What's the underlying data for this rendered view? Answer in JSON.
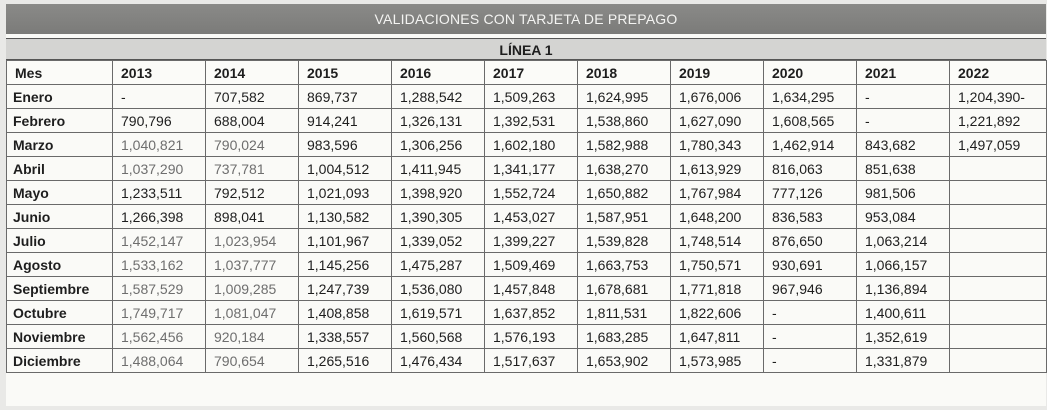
{
  "title": "VALIDACIONES CON TARJETA DE PREPAGO",
  "subtitle": "LÍNEA 1",
  "headers": [
    "Mes",
    "2013",
    "2014",
    "2015",
    "2016",
    "2017",
    "2018",
    "2019",
    "2020",
    "2021",
    "2022"
  ],
  "rows": [
    {
      "month": "Enero",
      "values": [
        "-",
        "707,582",
        "869,737",
        "1,288,542",
        "1,509,263",
        "1,624,995",
        "1,676,006",
        "1,634,295",
        "-",
        "1,204,390-"
      ]
    },
    {
      "month": "Febrero",
      "values": [
        "790,796",
        "688,004",
        "914,241",
        "1,326,131",
        "1,392,531",
        "1,538,860",
        "1,627,090",
        "1,608,565",
        "-",
        "1,221,892"
      ]
    },
    {
      "month": "Marzo",
      "values": [
        "1,040,821",
        "790,024",
        "983,596",
        "1,306,256",
        "1,602,180",
        "1,582,988",
        "1,780,343",
        "1,462,914",
        "843,682",
        "1,497,059"
      ]
    },
    {
      "month": "Abril",
      "values": [
        "1,037,290",
        "737,781",
        "1,004,512",
        "1,411,945",
        "1,341,177",
        "1,638,270",
        "1,613,929",
        "816,063",
        "851,638",
        ""
      ]
    },
    {
      "month": "Mayo",
      "values": [
        "1,233,511",
        "792,512",
        "1,021,093",
        "1,398,920",
        "1,552,724",
        "1,650,882",
        "1,767,984",
        "777,126",
        "981,506",
        ""
      ]
    },
    {
      "month": "Junio",
      "values": [
        "1,266,398",
        "898,041",
        "1,130,582",
        "1,390,305",
        "1,453,027",
        "1,587,951",
        "1,648,200",
        "836,583",
        "953,084",
        ""
      ]
    },
    {
      "month": "Julio",
      "values": [
        "1,452,147",
        "1,023,954",
        "1,101,967",
        "1,339,052",
        "1,399,227",
        "1,539,828",
        "1,748,514",
        "876,650",
        "1,063,214",
        ""
      ]
    },
    {
      "month": "Agosto",
      "values": [
        "1,533,162",
        "1,037,777",
        "1,145,256",
        "1,475,287",
        "1,509,469",
        "1,663,753",
        "1,750,571",
        "930,691",
        "1,066,157",
        ""
      ]
    },
    {
      "month": "Septiembre",
      "values": [
        "1,587,529",
        "1,009,285",
        "1,247,739",
        "1,536,080",
        "1,457,848",
        "1,678,681",
        "1,771,818",
        "967,946",
        "1,136,894",
        ""
      ]
    },
    {
      "month": "Octubre",
      "values": [
        "1,749,717",
        "1,081,047",
        "1,408,858",
        "1,619,571",
        "1,637,852",
        "1,811,531",
        "1,822,606",
        "-",
        "1,400,611",
        ""
      ]
    },
    {
      "month": "Noviembre",
      "values": [
        "1,562,456",
        "920,184",
        "1,338,557",
        "1,560,568",
        "1,576,193",
        "1,683,285",
        "1,647,811",
        "-",
        "1,352,619",
        ""
      ]
    },
    {
      "month": "Diciembre",
      "values": [
        "1,488,064",
        "790,654",
        "1,265,516",
        "1,476,434",
        "1,517,637",
        "1,653,902",
        "1,573,985",
        "-",
        "1,331,879",
        ""
      ]
    }
  ]
}
